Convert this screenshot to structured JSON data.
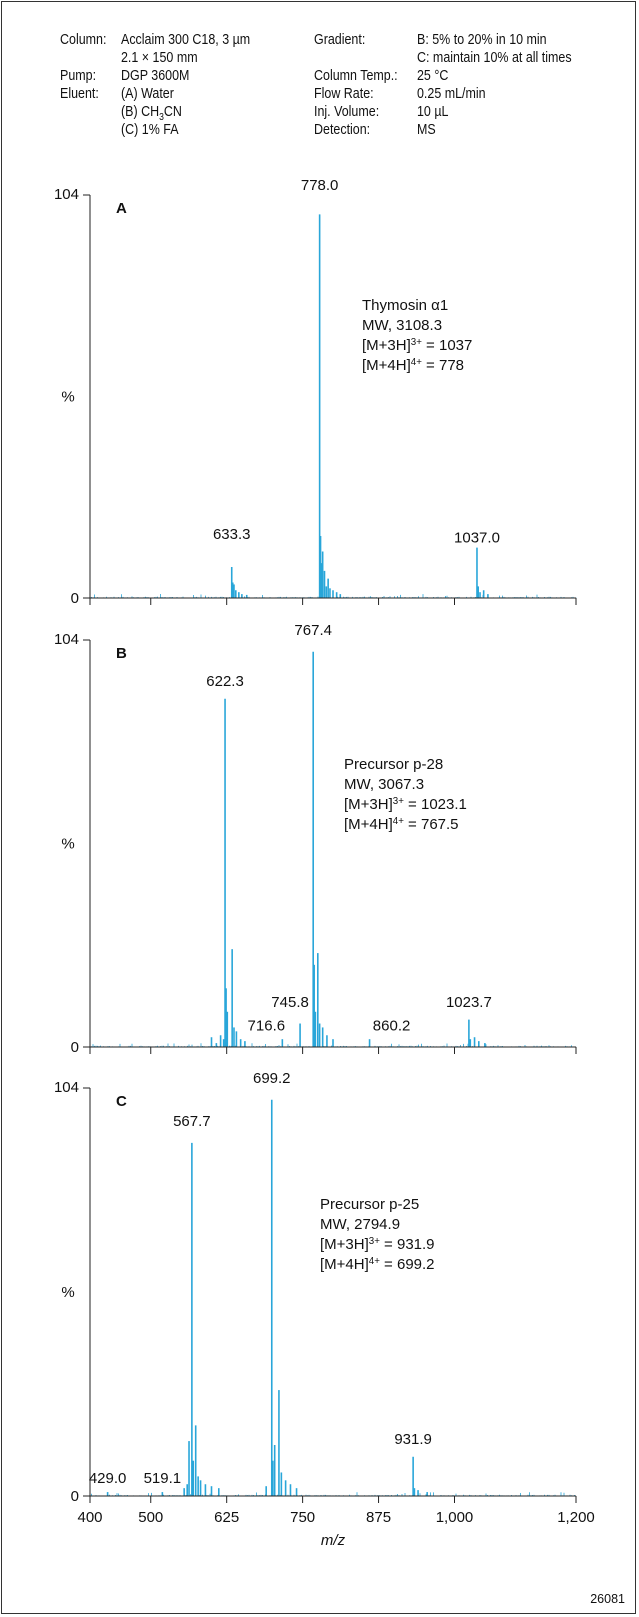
{
  "conditions": {
    "left": [
      {
        "label": "Column:",
        "values": [
          "Acclaim 300 C18, 3 µm",
          "2.1 × 150 mm"
        ]
      },
      {
        "label": "Pump:",
        "values": [
          "DGP 3600M"
        ]
      },
      {
        "label": "Eluent:",
        "values": [
          "(A) Water",
          "(B) CH3CN",
          "(C) 1% FA"
        ]
      }
    ],
    "right": [
      {
        "label": "Gradient:",
        "values": [
          "B: 5% to 20% in 10 min",
          "C: maintain 10% at all times"
        ]
      },
      {
        "label": "Column Temp.:",
        "values": [
          "25 °C"
        ]
      },
      {
        "label": "Flow Rate:",
        "values": [
          "0.25 mL/min"
        ]
      },
      {
        "label": "Inj. Volume:",
        "values": [
          "10 µL"
        ]
      },
      {
        "label": "Detection:",
        "values": [
          "MS"
        ]
      }
    ]
  },
  "figure_id": "26081",
  "colors": {
    "spectrum": "#29a6d9",
    "axis": "#222222"
  },
  "chart_data": [
    {
      "type": "line",
      "panel_label": "A",
      "xlabel": "m/z",
      "ylabel": "%",
      "xlim": [
        400,
        1200
      ],
      "ylim": [
        0,
        104
      ],
      "yticks": [
        "0",
        "104"
      ],
      "xticks": [],
      "annotation": [
        "Thymosin α1",
        "MW, 3108.3",
        "[M+3H]3+ = 1037",
        "[M+4H]4+ = 778"
      ],
      "peak_labels": [
        {
          "x": 633.3,
          "label": "633.3",
          "y": 14
        },
        {
          "x": 778.0,
          "label": "778.0",
          "y": 104
        },
        {
          "x": 1037.0,
          "label": "1037.0",
          "y": 13
        }
      ],
      "peaks": [
        [
          633.3,
          8
        ],
        [
          635.0,
          4
        ],
        [
          637.0,
          3.5
        ],
        [
          640.0,
          2
        ],
        [
          645.0,
          1.5
        ],
        [
          650.0,
          1
        ],
        [
          658,
          0.8
        ],
        [
          778.0,
          99
        ],
        [
          779.5,
          16
        ],
        [
          781.0,
          9
        ],
        [
          783.0,
          12
        ],
        [
          786.0,
          7
        ],
        [
          789.0,
          3
        ],
        [
          792.0,
          5
        ],
        [
          795.0,
          2.5
        ],
        [
          800,
          2
        ],
        [
          806,
          1.5
        ],
        [
          812,
          1
        ],
        [
          1037.0,
          13
        ],
        [
          1039.0,
          3
        ],
        [
          1042.0,
          1.5
        ],
        [
          1048.0,
          2
        ],
        [
          1055,
          1
        ]
      ]
    },
    {
      "type": "line",
      "panel_label": "B",
      "xlabel": "m/z",
      "ylabel": "%",
      "xlim": [
        400,
        1200
      ],
      "ylim": [
        0,
        104
      ],
      "yticks": [
        "0",
        "104"
      ],
      "xticks": [],
      "annotation": [
        "Precursor p-28",
        "MW, 3067.3",
        "[M+3H]3+ = 1023.1",
        "[M+4H]4+ = 767.5"
      ],
      "peak_labels": [
        {
          "x": 622.3,
          "label": "622.3",
          "y": 91
        },
        {
          "x": 767.4,
          "label": "767.4",
          "y": 104
        },
        {
          "x": 716.6,
          "label": "716.6",
          "y": 3
        },
        {
          "x": 745.8,
          "label": "745.8",
          "y": 9
        },
        {
          "x": 860.2,
          "label": "860.2",
          "y": 3
        },
        {
          "x": 1023.7,
          "label": "1023.7",
          "y": 9
        }
      ],
      "peaks": [
        [
          600,
          2.5
        ],
        [
          608,
          1
        ],
        [
          615,
          3
        ],
        [
          620,
          2
        ],
        [
          622.3,
          89
        ],
        [
          624.0,
          15
        ],
        [
          626.0,
          9
        ],
        [
          634.0,
          25
        ],
        [
          637,
          5
        ],
        [
          641,
          4
        ],
        [
          648,
          2
        ],
        [
          655,
          1.5
        ],
        [
          716.6,
          2
        ],
        [
          745.8,
          6
        ],
        [
          767.4,
          101
        ],
        [
          769.0,
          21
        ],
        [
          771.0,
          9
        ],
        [
          775.0,
          24
        ],
        [
          778,
          6
        ],
        [
          783.0,
          5
        ],
        [
          790,
          3
        ],
        [
          800,
          2
        ],
        [
          860.2,
          2
        ],
        [
          1023.7,
          7
        ],
        [
          1026,
          2
        ],
        [
          1033,
          2.5
        ],
        [
          1040,
          1.5
        ],
        [
          1050,
          1
        ]
      ]
    },
    {
      "type": "line",
      "panel_label": "C",
      "xlabel": "m/z",
      "ylabel": "%",
      "xlim": [
        400,
        1200
      ],
      "ylim": [
        0,
        104
      ],
      "yticks": [
        "0",
        "104"
      ],
      "xticks": [
        "400",
        "500",
        "625",
        "750",
        "875",
        "1,000",
        "1,200"
      ],
      "annotation": [
        "Precursor p-25",
        "MW, 2794.9",
        "[M+3H]3+ = 931.9",
        "[M+4H]4+ = 699.2"
      ],
      "peak_labels": [
        {
          "x": 429.0,
          "label": "429.0",
          "y": 2
        },
        {
          "x": 519.1,
          "label": "519.1",
          "y": 2
        },
        {
          "x": 567.7,
          "label": "567.7",
          "y": 93
        },
        {
          "x": 699.2,
          "label": "699.2",
          "y": 104
        },
        {
          "x": 931.9,
          "label": "931.9",
          "y": 12
        }
      ],
      "peaks": [
        [
          429.0,
          1
        ],
        [
          519.1,
          1
        ],
        [
          555,
          2
        ],
        [
          560,
          3
        ],
        [
          563.0,
          14
        ],
        [
          567.7,
          90
        ],
        [
          570.0,
          9
        ],
        [
          574.0,
          18
        ],
        [
          578,
          5
        ],
        [
          582,
          4
        ],
        [
          590,
          3
        ],
        [
          600,
          2.5
        ],
        [
          612,
          2
        ],
        [
          690,
          2.5
        ],
        [
          699.2,
          101
        ],
        [
          701.0,
          9
        ],
        [
          704.0,
          13
        ],
        [
          711.0,
          27
        ],
        [
          715,
          6
        ],
        [
          722.0,
          4
        ],
        [
          730,
          3
        ],
        [
          740,
          2
        ],
        [
          931.9,
          10
        ],
        [
          934,
          2
        ],
        [
          940,
          1.5
        ],
        [
          955,
          1
        ]
      ]
    }
  ]
}
